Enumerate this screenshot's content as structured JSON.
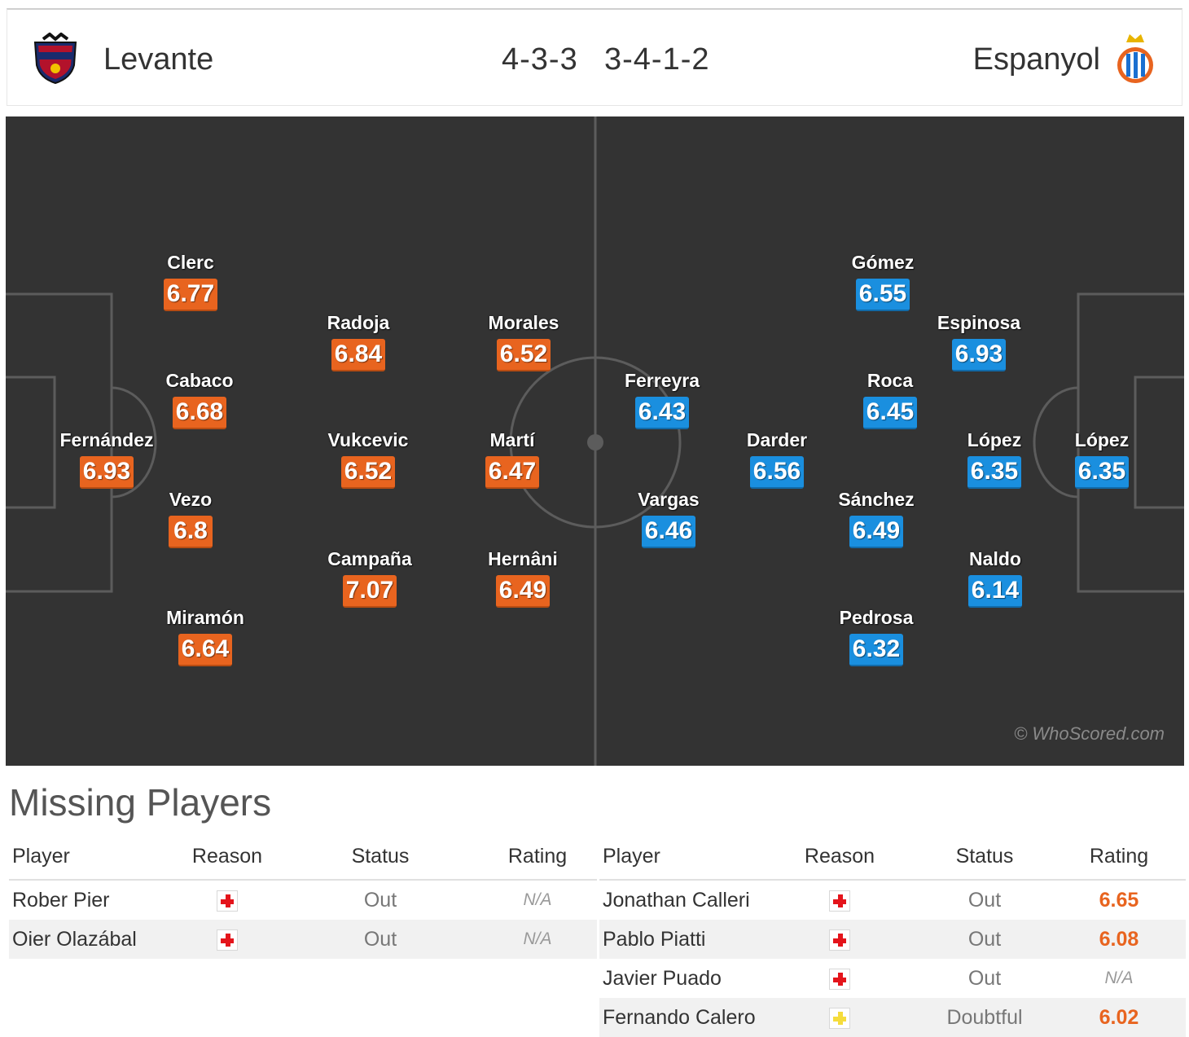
{
  "header": {
    "home_team": "Levante",
    "away_team": "Espanyol",
    "home_formation": "4-3-3",
    "away_formation": "3-4-1-2"
  },
  "pitch": {
    "watermark": "© WhoScored.com",
    "home_color": "#e8641f",
    "away_color": "#1a8fdf",
    "home_players": [
      {
        "name": "Fernández",
        "rating": "6.93"
      },
      {
        "name": "Clerc",
        "rating": "6.77"
      },
      {
        "name": "Cabaco",
        "rating": "6.68"
      },
      {
        "name": "Vezo",
        "rating": "6.8"
      },
      {
        "name": "Miramón",
        "rating": "6.64"
      },
      {
        "name": "Radoja",
        "rating": "6.84"
      },
      {
        "name": "Vukcevic",
        "rating": "6.52"
      },
      {
        "name": "Campaña",
        "rating": "7.07"
      },
      {
        "name": "Morales",
        "rating": "6.52"
      },
      {
        "name": "Martí",
        "rating": "6.47"
      },
      {
        "name": "Hernâni",
        "rating": "6.49"
      }
    ],
    "away_players": [
      {
        "name": "Ferreyra",
        "rating": "6.43"
      },
      {
        "name": "Vargas",
        "rating": "6.46"
      },
      {
        "name": "Darder",
        "rating": "6.56"
      },
      {
        "name": "Gómez",
        "rating": "6.55"
      },
      {
        "name": "Roca",
        "rating": "6.45"
      },
      {
        "name": "Sánchez",
        "rating": "6.49"
      },
      {
        "name": "Pedrosa",
        "rating": "6.32"
      },
      {
        "name": "Espinosa",
        "rating": "6.93"
      },
      {
        "name": "López",
        "rating": "6.35"
      },
      {
        "name": "Naldo",
        "rating": "6.14"
      },
      {
        "name": "López",
        "rating": "6.35"
      }
    ]
  },
  "missing": {
    "title": "Missing Players",
    "columns": [
      "Player",
      "Reason",
      "Status",
      "Rating"
    ],
    "home": [
      {
        "player": "Rober Pier",
        "reason": "injury-cross-icon",
        "status": "Out",
        "rating": "N/A"
      },
      {
        "player": "Oier Olazábal",
        "reason": "injury-cross-icon",
        "status": "Out",
        "rating": "N/A"
      }
    ],
    "away": [
      {
        "player": "Jonathan Calleri",
        "reason": "injury-cross-icon",
        "status": "Out",
        "rating": "6.65"
      },
      {
        "player": "Pablo Piatti",
        "reason": "injury-cross-icon",
        "status": "Out",
        "rating": "6.08"
      },
      {
        "player": "Javier Puado",
        "reason": "injury-cross-icon",
        "status": "Out",
        "rating": "N/A"
      },
      {
        "player": "Fernando Calero",
        "reason": "doubtful-cross-icon",
        "status": "Doubtful",
        "rating": "6.02"
      }
    ],
    "injury_color": "#e4141b",
    "doubtful_color": "#f5dc3c"
  }
}
